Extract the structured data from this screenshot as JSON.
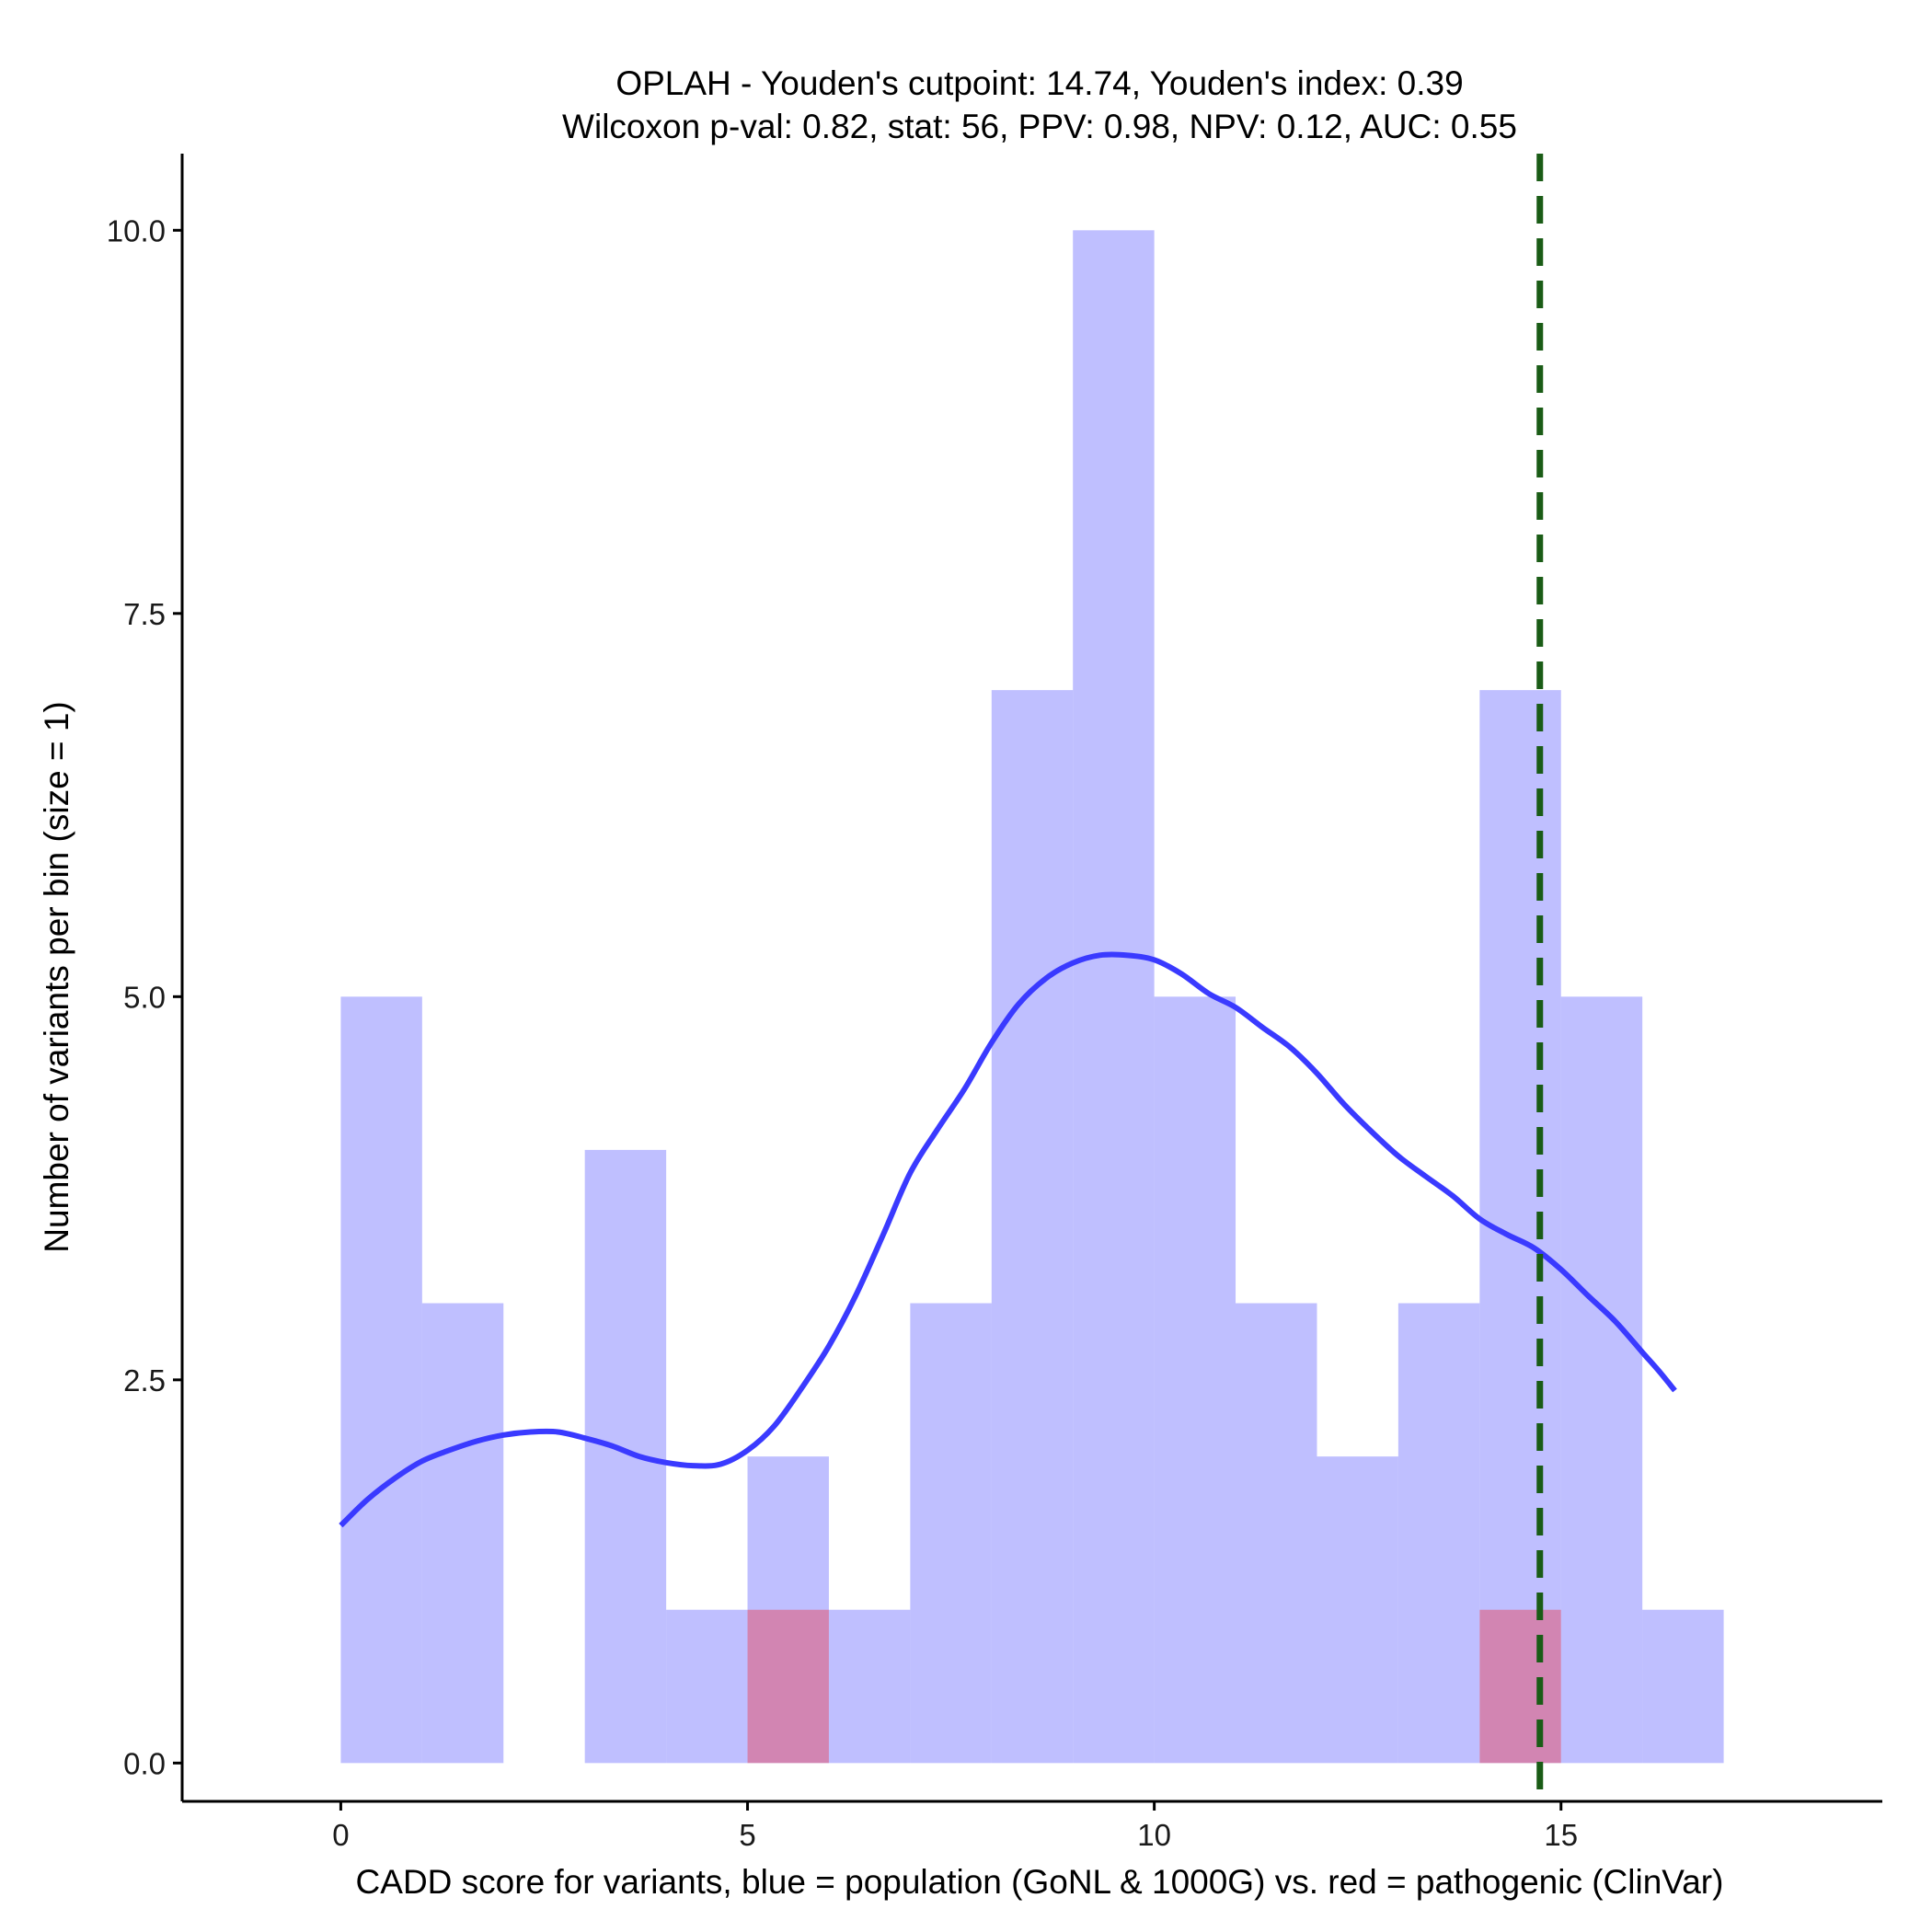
{
  "chart_data": {
    "type": "histogram",
    "title": {
      "line1": "OPLAH - Youden's cutpoint: 14.74, Youden's index: 0.39",
      "line2": "Wilcoxon p-val: 0.82, stat: 56, PPV: 0.98, NPV: 0.12, AUC: 0.55"
    },
    "xlabel": "CADD score for variants, blue = population (GoNL & 1000G) vs. red = pathogenic (ClinVar)",
    "ylabel": "Number of variants per bin (size = 1)",
    "xlim": [
      -1.95,
      18.95
    ],
    "ylim": [
      -0.25,
      10.5
    ],
    "x_ticks": [
      {
        "value": 0,
        "label": "0"
      },
      {
        "value": 5,
        "label": "5"
      },
      {
        "value": 10,
        "label": "10"
      },
      {
        "value": 15,
        "label": "15"
      }
    ],
    "y_ticks": [
      {
        "value": 0,
        "label": "0.0"
      },
      {
        "value": 2.5,
        "label": "2.5"
      },
      {
        "value": 5,
        "label": "5.0"
      },
      {
        "value": 7.5,
        "label": "7.5"
      },
      {
        "value": 10,
        "label": "10.0"
      }
    ],
    "bin_width": 1,
    "series": [
      {
        "group": "population",
        "color": "#8080ff",
        "opacity": 0.5,
        "bins": [
          {
            "start": 0,
            "count": 5
          },
          {
            "start": 1,
            "count": 3
          },
          {
            "start": 2,
            "count": 0
          },
          {
            "start": 3,
            "count": 4
          },
          {
            "start": 4,
            "count": 1
          },
          {
            "start": 5,
            "count": 2
          },
          {
            "start": 6,
            "count": 1
          },
          {
            "start": 7,
            "count": 3
          },
          {
            "start": 8,
            "count": 7
          },
          {
            "start": 9,
            "count": 10
          },
          {
            "start": 10,
            "count": 5
          },
          {
            "start": 11,
            "count": 3
          },
          {
            "start": 12,
            "count": 2
          },
          {
            "start": 13,
            "count": 3
          },
          {
            "start": 14,
            "count": 7
          },
          {
            "start": 15,
            "count": 5
          },
          {
            "start": 16,
            "count": 1
          }
        ]
      },
      {
        "group": "pathogenic",
        "color": "#ff0000",
        "opacity": 0.3,
        "bins": [
          {
            "start": 5,
            "count": 1
          },
          {
            "start": 14,
            "count": 1
          }
        ]
      }
    ],
    "density_curve": {
      "color": "#3a3aff",
      "points": [
        [
          0,
          1.55
        ],
        [
          0.33,
          1.72
        ],
        [
          0.67,
          1.86
        ],
        [
          1.0,
          1.97
        ],
        [
          1.33,
          2.04
        ],
        [
          1.67,
          2.1
        ],
        [
          2.0,
          2.14
        ],
        [
          2.33,
          2.16
        ],
        [
          2.67,
          2.16
        ],
        [
          3.0,
          2.12
        ],
        [
          3.33,
          2.07
        ],
        [
          3.67,
          2.0
        ],
        [
          4.0,
          1.96
        ],
        [
          4.33,
          1.94
        ],
        [
          4.67,
          1.95
        ],
        [
          5.0,
          2.04
        ],
        [
          5.33,
          2.2
        ],
        [
          5.67,
          2.45
        ],
        [
          6.0,
          2.72
        ],
        [
          6.33,
          3.05
        ],
        [
          6.67,
          3.45
        ],
        [
          7.0,
          3.85
        ],
        [
          7.33,
          4.13
        ],
        [
          7.67,
          4.4
        ],
        [
          8.0,
          4.7
        ],
        [
          8.33,
          4.95
        ],
        [
          8.67,
          5.12
        ],
        [
          9.0,
          5.22
        ],
        [
          9.33,
          5.27
        ],
        [
          9.67,
          5.27
        ],
        [
          10.0,
          5.24
        ],
        [
          10.33,
          5.15
        ],
        [
          10.67,
          5.02
        ],
        [
          11.0,
          4.93
        ],
        [
          11.33,
          4.8
        ],
        [
          11.67,
          4.67
        ],
        [
          12.0,
          4.5
        ],
        [
          12.33,
          4.3
        ],
        [
          12.67,
          4.12
        ],
        [
          13.0,
          3.96
        ],
        [
          13.33,
          3.83
        ],
        [
          13.67,
          3.7
        ],
        [
          14.0,
          3.55
        ],
        [
          14.33,
          3.45
        ],
        [
          14.67,
          3.36
        ],
        [
          15.0,
          3.22
        ],
        [
          15.33,
          3.05
        ],
        [
          15.67,
          2.88
        ],
        [
          16.0,
          2.68
        ],
        [
          16.2,
          2.56
        ],
        [
          16.4,
          2.43
        ]
      ]
    },
    "cutpoint": {
      "value": 14.74,
      "color": "#1a5c16",
      "style": "dashed"
    }
  }
}
